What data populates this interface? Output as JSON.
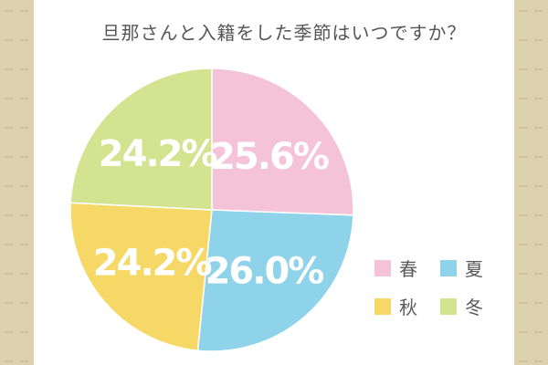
{
  "page": {
    "title": "旦那さんと入籍をした季節はいつですか？",
    "background_color": "#dcd2ad",
    "panel_color": "#ffffff"
  },
  "chart_data": {
    "type": "pie",
    "title": "旦那さんと入籍をした季節はいつですか？",
    "start_angle_deg": 0,
    "direction": "clockwise",
    "slices": [
      {
        "label": "春",
        "value": 25.6,
        "value_label": "25.6%",
        "color": "#f4c3d7"
      },
      {
        "label": "夏",
        "value": 26.0,
        "value_label": "26.0%",
        "color": "#8ed3ea"
      },
      {
        "label": "秋",
        "value": 24.2,
        "value_label": "24.2%",
        "color": "#f6d866"
      },
      {
        "label": "冬",
        "value": 24.2,
        "value_label": "24.2%",
        "color": "#d3e38f"
      }
    ],
    "legend": {
      "placement": "bottom-right",
      "items": [
        "春",
        "夏",
        "秋",
        "冬"
      ]
    }
  }
}
